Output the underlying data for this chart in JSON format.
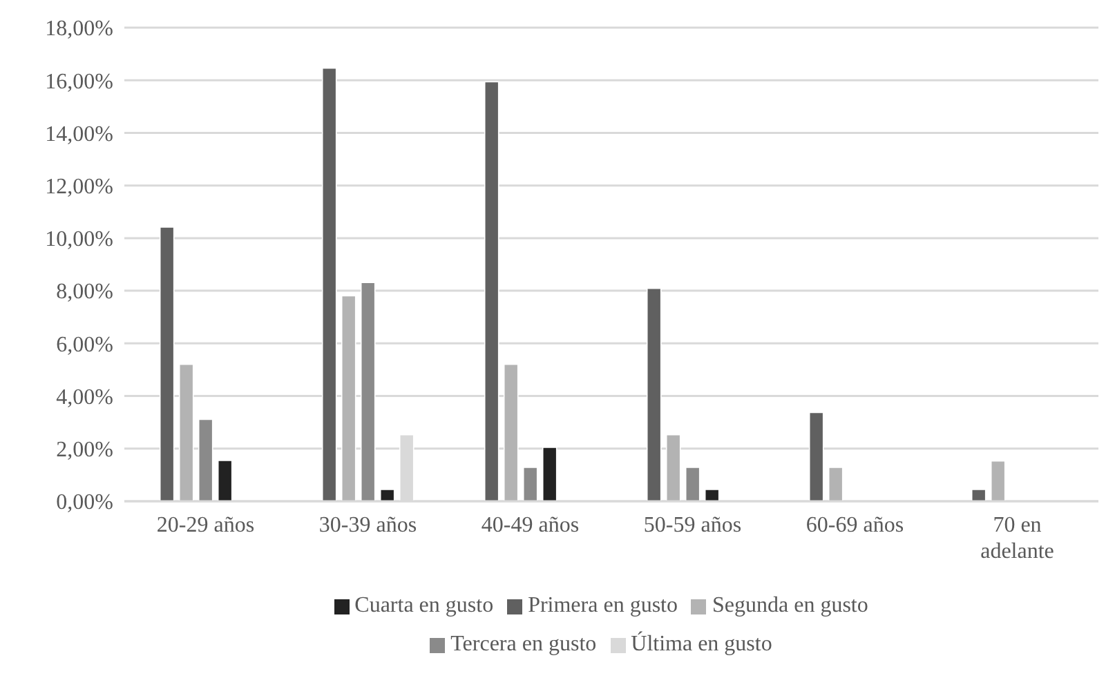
{
  "chart_data": {
    "type": "bar",
    "categories": [
      "20-29 años",
      "30-39 años",
      "40-49 años",
      "50-59 años",
      "60-69 años",
      "70 en adelante"
    ],
    "series": [
      {
        "name": "Primera en gusto",
        "color": "#606060",
        "values": [
          10.42,
          16.46,
          15.94,
          8.09,
          3.37,
          0.45
        ]
      },
      {
        "name": "Segunda en gusto",
        "color": "#b3b3b3",
        "values": [
          5.2,
          7.81,
          5.2,
          2.53,
          1.29,
          1.53
        ]
      },
      {
        "name": "Tercera en gusto",
        "color": "#8a8a8a",
        "values": [
          3.11,
          8.31,
          1.29,
          1.29,
          0,
          0
        ]
      },
      {
        "name": "Cuarta en gusto",
        "color": "#222222",
        "values": [
          1.55,
          0.45,
          2.05,
          0.45,
          0,
          0
        ]
      },
      {
        "name": "Última en gusto",
        "color": "#d9d9d9",
        "values": [
          0,
          2.53,
          0,
          0,
          0,
          0
        ]
      }
    ],
    "ylim": [
      0,
      18
    ],
    "yticks": [
      {
        "value": 0,
        "label": "0,00%"
      },
      {
        "value": 2,
        "label": "2,00%"
      },
      {
        "value": 4,
        "label": "4,00%"
      },
      {
        "value": 6,
        "label": "6,00%"
      },
      {
        "value": 8,
        "label": "8,00%"
      },
      {
        "value": 10,
        "label": "10,00%"
      },
      {
        "value": 12,
        "label": "12,00%"
      },
      {
        "value": 14,
        "label": "14,00%"
      },
      {
        "value": 16,
        "label": "16,00%"
      },
      {
        "value": 18,
        "label": "18,00%"
      }
    ],
    "grid": "y",
    "legend": "bottom"
  }
}
